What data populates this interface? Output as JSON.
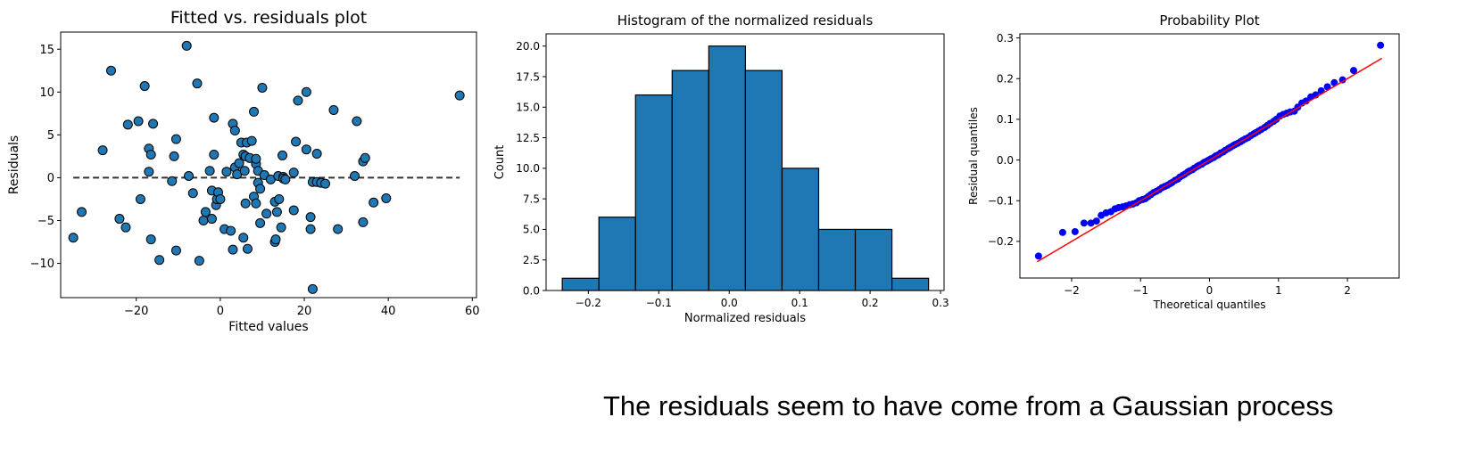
{
  "caption": "The residuals seem to have come from a Gaussian process",
  "colors": {
    "face": "#1f77b4",
    "probplot_points": "#0000ff",
    "fit_line": "#ff0000",
    "zero_line": "#333333"
  },
  "chart_data": [
    {
      "type": "scatter",
      "title": "Fitted vs. residuals plot",
      "xlabel": "Fitted values",
      "ylabel": "Residuals",
      "xlim": [
        -38,
        61
      ],
      "ylim": [
        -14,
        17
      ],
      "xticks": [
        -20,
        0,
        20,
        40,
        60
      ],
      "yticks": [
        -10,
        -5,
        0,
        5,
        10,
        15
      ],
      "hline": 0,
      "hline_range": [
        -35,
        57
      ],
      "grid": false,
      "points": [
        [
          -35,
          -7
        ],
        [
          -33,
          -4
        ],
        [
          -28,
          3.2
        ],
        [
          -26,
          12.5
        ],
        [
          -24,
          -4.8
        ],
        [
          -22.5,
          -5.8
        ],
        [
          -22,
          6.2
        ],
        [
          -19.5,
          6.6
        ],
        [
          -19,
          -2.5
        ],
        [
          -18,
          10.7
        ],
        [
          -17,
          3.4
        ],
        [
          -17,
          0.7
        ],
        [
          -16.5,
          -7.2
        ],
        [
          -16.5,
          2.7
        ],
        [
          -16,
          6.3
        ],
        [
          -14.5,
          -9.6
        ],
        [
          -11.5,
          -0.4
        ],
        [
          -11,
          2.5
        ],
        [
          -10.5,
          4.5
        ],
        [
          -10.5,
          -8.5
        ],
        [
          -8,
          15.4
        ],
        [
          -7.5,
          0.2
        ],
        [
          -6.5,
          -1.8
        ],
        [
          -5.5,
          11
        ],
        [
          -5,
          -9.7
        ],
        [
          -4,
          -5
        ],
        [
          -3.5,
          -4
        ],
        [
          -2.5,
          0.8
        ],
        [
          -2,
          -4.8
        ],
        [
          -2,
          -1.5
        ],
        [
          -1.5,
          7
        ],
        [
          -1.5,
          2.7
        ],
        [
          -1,
          -3.2
        ],
        [
          -0.8,
          -2.5
        ],
        [
          -0.5,
          -1.7
        ],
        [
          0,
          -2.5
        ],
        [
          1,
          -6
        ],
        [
          1.5,
          0.7
        ],
        [
          2.5,
          -6.2
        ],
        [
          3,
          6.3
        ],
        [
          3,
          -8.4
        ],
        [
          3.5,
          5.5
        ],
        [
          3.5,
          1.2
        ],
        [
          4,
          0.4
        ],
        [
          4.5,
          1.7
        ],
        [
          5,
          4.1
        ],
        [
          5.5,
          2.7
        ],
        [
          5.5,
          -7
        ],
        [
          5.8,
          0.8
        ],
        [
          6,
          -3
        ],
        [
          6,
          2.5
        ],
        [
          6.3,
          4.1
        ],
        [
          6.5,
          -8.3
        ],
        [
          7,
          2.3
        ],
        [
          7.5,
          4.3
        ],
        [
          8,
          -2.2
        ],
        [
          8,
          7.7
        ],
        [
          8.5,
          1.6
        ],
        [
          8.5,
          -3
        ],
        [
          8.5,
          2.2
        ],
        [
          9,
          0.8
        ],
        [
          9,
          -0.6
        ],
        [
          9.5,
          -1.3
        ],
        [
          9.5,
          -5.3
        ],
        [
          10,
          10.5
        ],
        [
          10.5,
          0.3
        ],
        [
          11,
          -4.2
        ],
        [
          12,
          -0.2
        ],
        [
          13,
          -2.8
        ],
        [
          13,
          -7.5
        ],
        [
          13.2,
          -7.2
        ],
        [
          13.5,
          -4
        ],
        [
          13.8,
          0.2
        ],
        [
          14,
          -2.5
        ],
        [
          14.5,
          -5.8
        ],
        [
          14.8,
          2.6
        ],
        [
          15,
          0.1
        ],
        [
          15,
          -0.1
        ],
        [
          15.5,
          -0.2
        ],
        [
          17.5,
          -3.8
        ],
        [
          17.5,
          0.6
        ],
        [
          18,
          4.2
        ],
        [
          18.5,
          9
        ],
        [
          20.5,
          3.3
        ],
        [
          20.5,
          10
        ],
        [
          21.5,
          -6
        ],
        [
          21.5,
          -4.6
        ],
        [
          22,
          -13
        ],
        [
          22,
          -0.5
        ],
        [
          23,
          2.8
        ],
        [
          23,
          -0.5
        ],
        [
          24,
          -0.6
        ],
        [
          25,
          -0.7
        ],
        [
          27,
          7.9
        ],
        [
          28,
          -6
        ],
        [
          32,
          0.2
        ],
        [
          32.5,
          6.6
        ],
        [
          34,
          -5.2
        ],
        [
          34,
          1.9
        ],
        [
          34.5,
          2.3
        ],
        [
          36.5,
          -2.9
        ],
        [
          39.5,
          -2.4
        ],
        [
          57,
          9.6
        ]
      ]
    },
    {
      "type": "bar",
      "title": "Histogram of the normalized residuals",
      "xlabel": "Normalized residuals",
      "ylabel": "Count",
      "xlim": [
        -0.26,
        0.305
      ],
      "ylim": [
        0,
        21
      ],
      "xticks": [
        -0.2,
        -0.1,
        0.0,
        0.1,
        0.2,
        0.3
      ],
      "xtick_labels": [
        "−0.2",
        "−0.1",
        "0.0",
        "0.1",
        "0.2",
        "0.3"
      ],
      "yticks": [
        0,
        2.5,
        5,
        7.5,
        10,
        12.5,
        15,
        17.5,
        20
      ],
      "ytick_labels": [
        "0.0",
        "2.5",
        "5.0",
        "7.5",
        "10.0",
        "12.5",
        "15.0",
        "17.5",
        "20.0"
      ],
      "bin_edges": [
        -0.237,
        -0.185,
        -0.133,
        -0.081,
        -0.029,
        0.023,
        0.075,
        0.127,
        0.179,
        0.231,
        0.283
      ],
      "values": [
        1,
        6,
        16,
        18,
        20,
        18,
        10,
        5,
        5,
        1
      ],
      "grid": false
    },
    {
      "type": "scatter",
      "title": "Probability Plot",
      "xlabel": "Theoretical quantiles",
      "ylabel": "Residual quantiles",
      "xlim": [
        -2.75,
        2.75
      ],
      "ylim": [
        -0.29,
        0.31
      ],
      "xticks": [
        -2,
        -1,
        0,
        1,
        2
      ],
      "xtick_labels": [
        "−2",
        "−1",
        "0",
        "1",
        "2"
      ],
      "yticks": [
        -0.2,
        -0.1,
        0.0,
        0.1,
        0.2,
        0.3
      ],
      "ytick_labels": [
        "−0.2",
        "−0.1",
        "0.0",
        "0.1",
        "0.2",
        "0.3"
      ],
      "fit_line": {
        "x": [
          -2.5,
          2.5
        ],
        "y": [
          -0.25,
          0.25
        ]
      },
      "grid": false,
      "points": [
        [
          -2.48,
          -0.236
        ],
        [
          -2.13,
          -0.178
        ],
        [
          -1.95,
          -0.176
        ],
        [
          -1.82,
          -0.155
        ],
        [
          -1.72,
          -0.155
        ],
        [
          -1.64,
          -0.15
        ],
        [
          -1.57,
          -0.136
        ],
        [
          -1.5,
          -0.13
        ],
        [
          -1.43,
          -0.127
        ],
        [
          -1.37,
          -0.12
        ],
        [
          -1.32,
          -0.117
        ],
        [
          -1.26,
          -0.115
        ],
        [
          -1.21,
          -0.113
        ],
        [
          -1.16,
          -0.11
        ],
        [
          -1.11,
          -0.108
        ],
        [
          -1.06,
          -0.105
        ],
        [
          -1.02,
          -0.1
        ],
        [
          -0.97,
          -0.097
        ],
        [
          -0.93,
          -0.095
        ],
        [
          -0.89,
          -0.09
        ],
        [
          -0.85,
          -0.085
        ],
        [
          -0.81,
          -0.08
        ],
        [
          -0.77,
          -0.077
        ],
        [
          -0.73,
          -0.073
        ],
        [
          -0.69,
          -0.068
        ],
        [
          -0.65,
          -0.065
        ],
        [
          -0.61,
          -0.062
        ],
        [
          -0.57,
          -0.058
        ],
        [
          -0.54,
          -0.055
        ],
        [
          -0.5,
          -0.05
        ],
        [
          -0.46,
          -0.047
        ],
        [
          -0.43,
          -0.042
        ],
        [
          -0.39,
          -0.038
        ],
        [
          -0.36,
          -0.035
        ],
        [
          -0.32,
          -0.03
        ],
        [
          -0.29,
          -0.027
        ],
        [
          -0.25,
          -0.024
        ],
        [
          -0.22,
          -0.02
        ],
        [
          -0.18,
          -0.016
        ],
        [
          -0.15,
          -0.013
        ],
        [
          -0.11,
          -0.01
        ],
        [
          -0.08,
          -0.006
        ],
        [
          -0.04,
          -0.003
        ],
        [
          -0.01,
          0.0
        ],
        [
          0.02,
          0.003
        ],
        [
          0.06,
          0.006
        ],
        [
          0.09,
          0.01
        ],
        [
          0.13,
          0.013
        ],
        [
          0.16,
          0.017
        ],
        [
          0.2,
          0.02
        ],
        [
          0.23,
          0.024
        ],
        [
          0.27,
          0.028
        ],
        [
          0.3,
          0.031
        ],
        [
          0.34,
          0.035
        ],
        [
          0.37,
          0.038
        ],
        [
          0.41,
          0.041
        ],
        [
          0.45,
          0.045
        ],
        [
          0.48,
          0.048
        ],
        [
          0.52,
          0.052
        ],
        [
          0.56,
          0.055
        ],
        [
          0.6,
          0.06
        ],
        [
          0.64,
          0.064
        ],
        [
          0.67,
          0.067
        ],
        [
          0.71,
          0.071
        ],
        [
          0.75,
          0.075
        ],
        [
          0.8,
          0.08
        ],
        [
          0.84,
          0.085
        ],
        [
          0.88,
          0.09
        ],
        [
          0.93,
          0.095
        ],
        [
          0.97,
          0.1
        ],
        [
          1.02,
          0.108
        ],
        [
          1.07,
          0.112
        ],
        [
          1.12,
          0.115
        ],
        [
          1.17,
          0.118
        ],
        [
          1.23,
          0.12
        ],
        [
          1.28,
          0.13
        ],
        [
          1.34,
          0.14
        ],
        [
          1.4,
          0.145
        ],
        [
          1.47,
          0.155
        ],
        [
          1.54,
          0.16
        ],
        [
          1.62,
          0.17
        ],
        [
          1.71,
          0.18
        ],
        [
          1.81,
          0.19
        ],
        [
          1.93,
          0.197
        ],
        [
          2.09,
          0.22
        ],
        [
          2.48,
          0.282
        ]
      ]
    }
  ]
}
